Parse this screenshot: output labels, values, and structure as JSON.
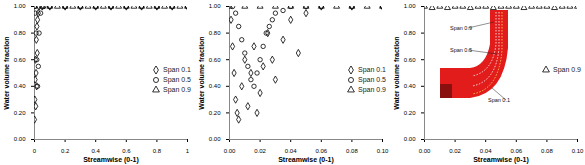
{
  "chart_data": [
    {
      "type": "scatter",
      "xlabel": "Streamwise (0-1)",
      "ylabel": "Water volume fraction",
      "xlim": [
        0,
        1
      ],
      "ylim": [
        0,
        1
      ],
      "xticks": [
        0,
        0.2,
        0.4,
        0.6,
        0.8,
        1
      ],
      "yticks": [
        {
          "value": 0,
          "label": "0.00"
        },
        {
          "value": 0.2,
          "label": "0.20"
        },
        {
          "value": 0.4,
          "label": "0.40"
        },
        {
          "value": 0.6,
          "label": "0.60"
        },
        {
          "value": 0.8,
          "label": "0.80"
        },
        {
          "value": 1,
          "label": "1.00"
        }
      ],
      "grid": false,
      "legend": "right",
      "series": [
        {
          "name": "Span 0.1",
          "color": "#000000",
          "marker": "diamond",
          "x": [
            0,
            0.002,
            0.004,
            0.006,
            0.008,
            0.01,
            0.012,
            0.014,
            0.016,
            0.018,
            0.02,
            0.025,
            0.03,
            0.05,
            0.1,
            0.2,
            0.3,
            0.4,
            0.5,
            0.6,
            0.7,
            0.8,
            0.9,
            1
          ],
          "values": [
            0.15,
            0.3,
            0.45,
            0.6,
            0.25,
            0.5,
            0.75,
            0.4,
            0.85,
            0.65,
            0.9,
            0.95,
            1,
            1,
            1,
            1,
            1,
            1,
            1,
            1,
            1,
            1,
            1,
            1
          ]
        },
        {
          "name": "Span 0.5",
          "color": "#000000",
          "marker": "circle",
          "x": [
            0,
            0.005,
            0.01,
            0.015,
            0.02,
            0.025,
            0.03,
            0.04,
            0.06,
            0.1,
            0.2,
            0.3,
            0.4,
            0.5,
            0.6,
            0.7,
            0.8,
            0.9,
            1
          ],
          "values": [
            1,
            0.95,
            0.8,
            0.6,
            0.4,
            0.55,
            0.8,
            0.95,
            1,
            1,
            1,
            1,
            1,
            1,
            1,
            1,
            1,
            1,
            1
          ]
        },
        {
          "name": "Span 0.9",
          "color": "#000000",
          "marker": "triangle",
          "x": [
            0,
            0.05,
            0.1,
            0.15,
            0.2,
            0.25,
            0.3,
            0.35,
            0.4,
            0.45,
            0.5,
            0.55,
            0.6,
            0.65,
            0.7,
            0.75,
            0.8,
            0.85,
            0.9,
            0.95,
            1
          ],
          "values": [
            1,
            1,
            1,
            1,
            1,
            1,
            1,
            1,
            1,
            1,
            1,
            1,
            1,
            1,
            1,
            1,
            1,
            1,
            1,
            1,
            1
          ]
        }
      ]
    },
    {
      "type": "scatter",
      "xlabel": "Streamwise (0-1)",
      "ylabel": "Water volume fraction",
      "xlim": [
        0,
        0.1
      ],
      "ylim": [
        0,
        1
      ],
      "xticks": [
        {
          "value": 0,
          "label": "0.00"
        },
        {
          "value": 0.02,
          "label": "0.02"
        },
        {
          "value": 0.04,
          "label": "0.04"
        },
        {
          "value": 0.06,
          "label": "0.06"
        },
        {
          "value": 0.08,
          "label": "0.08"
        },
        {
          "value": 0.1,
          "label": "0.10"
        }
      ],
      "yticks": [
        {
          "value": 0,
          "label": "0.00"
        },
        {
          "value": 0.2,
          "label": "0.20"
        },
        {
          "value": 0.4,
          "label": "0.40"
        },
        {
          "value": 0.6,
          "label": "0.60"
        },
        {
          "value": 0.8,
          "label": "0.80"
        },
        {
          "value": 1,
          "label": "1.00"
        }
      ],
      "grid": false,
      "legend": "right",
      "series": [
        {
          "name": "Span 0.1",
          "color": "#000000",
          "marker": "diamond",
          "x": [
            0.001,
            0.002,
            0.003,
            0.004,
            0.005,
            0.006,
            0.008,
            0.01,
            0.012,
            0.014,
            0.016,
            0.018,
            0.02,
            0.022,
            0.025,
            0.028,
            0.03,
            0.035,
            0.04,
            0.045,
            0.05,
            0.06,
            0.08,
            0.1
          ],
          "values": [
            0.9,
            0.7,
            0.5,
            0.3,
            0.2,
            0.15,
            0.4,
            0.6,
            0.25,
            0.5,
            0.7,
            0.2,
            0.35,
            0.55,
            0.8,
            0.6,
            0.45,
            0.75,
            0.9,
            0.65,
            0.95,
            1,
            1,
            1
          ]
        },
        {
          "name": "Span 0.5",
          "color": "#000000",
          "marker": "circle",
          "x": [
            0.002,
            0.004,
            0.006,
            0.008,
            0.01,
            0.012,
            0.014,
            0.016,
            0.018,
            0.02,
            0.022,
            0.024,
            0.026,
            0.028,
            0.03,
            0.035,
            0.04,
            0.05,
            0.06,
            0.08,
            0.1
          ],
          "values": [
            1,
            0.95,
            0.85,
            0.75,
            0.65,
            0.55,
            0.45,
            0.4,
            0.5,
            0.6,
            0.7,
            0.8,
            0.85,
            0.9,
            0.95,
            0.97,
            1,
            1,
            1,
            1,
            1
          ]
        },
        {
          "name": "Span 0.9",
          "color": "#000000",
          "marker": "triangle",
          "x": [
            0,
            0.01,
            0.02,
            0.03,
            0.04,
            0.05,
            0.06,
            0.07,
            0.08,
            0.09,
            0.1
          ],
          "values": [
            1,
            1,
            1,
            1,
            1,
            1,
            1,
            1,
            1,
            1,
            1
          ]
        }
      ]
    },
    {
      "type": "scatter",
      "xlabel": "Streamwise (0-1)",
      "ylabel": "Water volume fraction",
      "xlim": [
        0,
        0.1
      ],
      "ylim": [
        0,
        1
      ],
      "xticks": [
        {
          "value": 0,
          "label": "0.00"
        },
        {
          "value": 0.02,
          "label": "0.02"
        },
        {
          "value": 0.04,
          "label": "0.04"
        },
        {
          "value": 0.06,
          "label": "0.06"
        },
        {
          "value": 0.08,
          "label": "0.08"
        },
        {
          "value": 0.1,
          "label": "0.10"
        }
      ],
      "yticks": [
        {
          "value": 0,
          "label": "0.00"
        },
        {
          "value": 0.2,
          "label": "0.20"
        },
        {
          "value": 0.4,
          "label": "0.40"
        },
        {
          "value": 0.6,
          "label": "0.60"
        },
        {
          "value": 0.8,
          "label": "0.80"
        },
        {
          "value": 1,
          "label": "1.00"
        }
      ],
      "grid": false,
      "legend": "right",
      "annotations": [
        "Span 0.9",
        "Span 0.5",
        "Span 0.1"
      ],
      "series": [
        {
          "name": "Span 0.9",
          "color": "#000000",
          "marker": "triangle",
          "x": [
            0,
            0.005,
            0.01,
            0.015,
            0.02,
            0.025,
            0.03,
            0.035,
            0.04,
            0.045,
            0.05,
            0.055,
            0.06,
            0.065,
            0.07,
            0.075,
            0.08,
            0.085,
            0.09,
            0.095,
            0.1
          ],
          "values": [
            1,
            0.99,
            1,
            0.99,
            1,
            1,
            0.99,
            1,
            1,
            0.99,
            1,
            1,
            1,
            0.99,
            1,
            1,
            1,
            0.99,
            1,
            1,
            1
          ]
        }
      ]
    }
  ]
}
